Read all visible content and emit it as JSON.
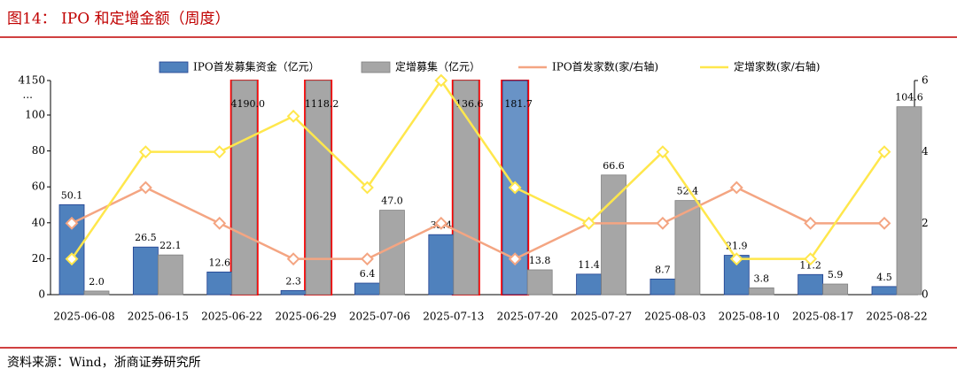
{
  "chart_data": {
    "type": "bar",
    "title": "图14：  IPO 和定增金额（周度）",
    "source": "资料来源：Wind，浙商证券研究所",
    "categories": [
      "2025-06-08",
      "2025-06-15",
      "2025-06-22",
      "2025-06-29",
      "2025-07-06",
      "2025-07-13",
      "2025-07-20",
      "2025-07-27",
      "2025-08-03",
      "2025-08-10",
      "2025-08-17",
      "2025-08-22"
    ],
    "series": [
      {
        "name": "IPO首发募集资金（亿元）",
        "color": "#4f81bd",
        "values": [
          50.1,
          26.5,
          12.6,
          2.3,
          6.4,
          33.4,
          181.7,
          11.4,
          8.7,
          21.9,
          11.2,
          4.5
        ],
        "value_labels": [
          "50.1",
          "26.5",
          "12.6",
          "2.3",
          "6.4",
          "33.4",
          "181.7",
          "11.4",
          "8.7",
          "21.9",
          "11.2",
          "4.5"
        ]
      },
      {
        "name": "定增募集（亿元）",
        "color": "#a6a6a6",
        "values": [
          2.0,
          22.1,
          4190.0,
          1118.2,
          47.0,
          136.6,
          13.8,
          66.6,
          52.4,
          3.8,
          5.9,
          104.6
        ],
        "value_labels": [
          "2.0",
          "22.1",
          "4190.0",
          "1118.2",
          "47.0",
          "136.6",
          "13.8",
          "66.6",
          "52.4",
          "3.8",
          "5.9",
          "104.6"
        ]
      },
      {
        "name": "IPO首发家数(家/右轴)",
        "type": "line",
        "axis": "y2",
        "color": "#f4a582",
        "values": [
          2,
          3,
          2,
          1,
          1,
          2,
          1,
          2,
          2,
          3,
          2,
          2
        ]
      },
      {
        "name": "定增家数(家/右轴)",
        "type": "line",
        "axis": "y2",
        "color": "#ffe74c",
        "values": [
          1,
          4,
          4,
          5,
          3,
          6,
          3,
          2,
          4,
          1,
          1,
          4
        ]
      }
    ],
    "ylim": [
      0,
      4150
    ],
    "ybreak": 100,
    "ybreak_label": "...",
    "yticks": [
      0,
      20,
      40,
      60,
      80,
      100,
      4150
    ],
    "y2lim": [
      0,
      6
    ],
    "y2ticks": [
      0,
      2,
      4,
      6
    ],
    "highlight_color": "#ff0000"
  }
}
